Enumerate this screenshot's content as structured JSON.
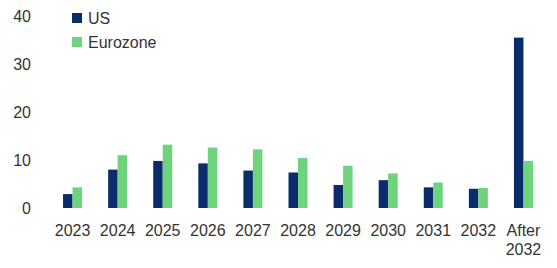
{
  "chart_data": {
    "type": "bar",
    "categories": [
      "2023",
      "2024",
      "2025",
      "2026",
      "2027",
      "2028",
      "2029",
      "2030",
      "2031",
      "2032",
      "After 2032"
    ],
    "series": [
      {
        "name": "US",
        "color": "#0b2c6b",
        "values": [
          2.9,
          8,
          9.8,
          9.3,
          7.8,
          7.4,
          4.8,
          5.8,
          4.3,
          4,
          35.5
        ]
      },
      {
        "name": "Eurozone",
        "color": "#6fd37e",
        "values": [
          4.3,
          11,
          13.2,
          12.6,
          12.2,
          10.4,
          8.8,
          7.2,
          5.3,
          4.2,
          9.8
        ]
      }
    ],
    "ylim": [
      0,
      40
    ],
    "yticks": [
      0,
      10,
      20,
      30,
      40
    ],
    "grid": false,
    "legend": "top-left"
  }
}
